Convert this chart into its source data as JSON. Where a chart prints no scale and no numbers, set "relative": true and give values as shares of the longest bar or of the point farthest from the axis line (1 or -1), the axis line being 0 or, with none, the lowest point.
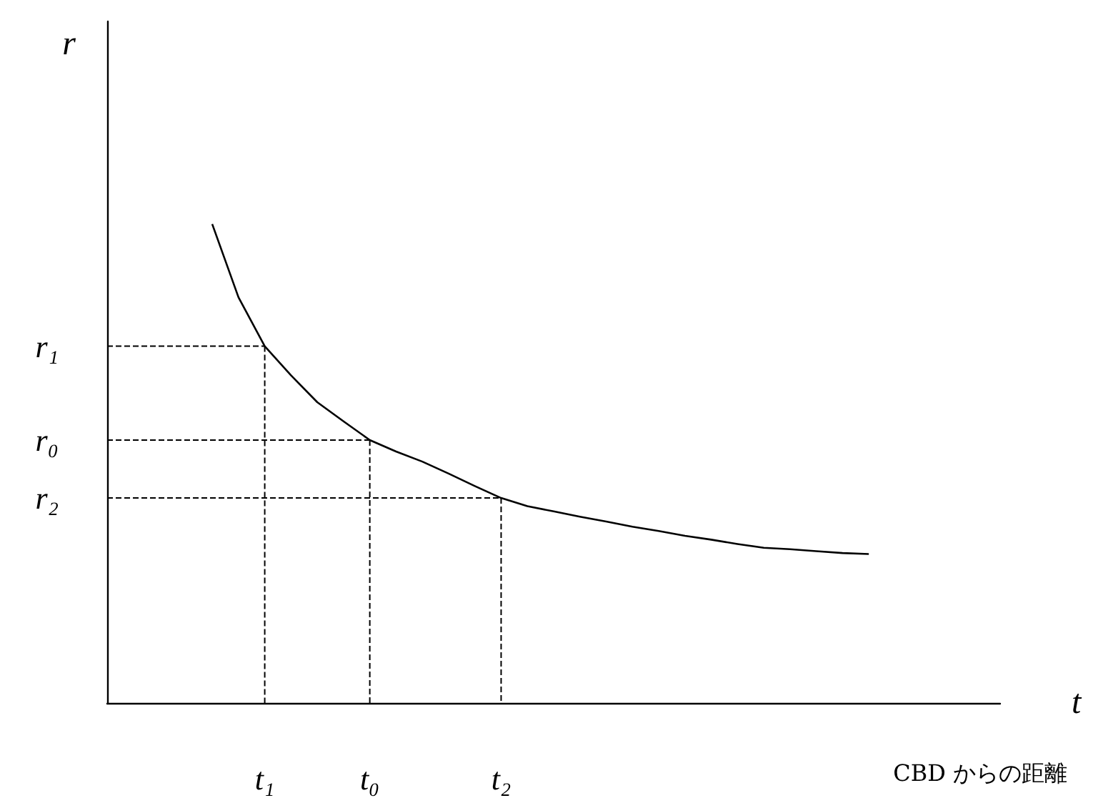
{
  "chart_data": {
    "type": "line",
    "xlabel": "t",
    "ylabel": "r",
    "relative": true,
    "categories": [
      null,
      null,
      null,
      null,
      null,
      null,
      "t₁",
      null,
      null,
      null,
      "t₀",
      null,
      null,
      null,
      null,
      "t₂",
      null,
      null,
      null,
      null,
      null,
      null,
      null,
      null,
      null,
      null,
      null,
      null,
      null,
      null,
      null,
      null,
      null,
      null,
      null
    ],
    "annotations": [
      "CBD からの距離"
    ],
    "grid": false,
    "marker": "none",
    "series": [
      {
        "color": "#000000",
        "line_style": "solid",
        "values": [
          null,
          null,
          null,
          null,
          1,
          0.847,
          0.745,
          0.684,
          0.628,
          0.588,
          0.549,
          0.525,
          0.504,
          0.479,
          0.453,
          0.428,
          0.411,
          0.4,
          0.389,
          0.379,
          0.368,
          0.359,
          0.349,
          0.341,
          0.332,
          0.324,
          0.321,
          0.317,
          0.313,
          0.311,
          null,
          null,
          null,
          null,
          null
        ]
      },
      {
        "name": "r₁",
        "color": "#000000",
        "line_style": "dashed",
        "values": [
          0.745,
          0.745,
          0.745,
          0.745,
          0.745,
          0.745,
          0.745,
          null,
          null,
          null,
          null,
          null,
          null,
          null,
          null,
          null,
          null,
          null,
          null,
          null,
          null,
          null,
          null,
          null,
          null,
          null,
          null,
          null,
          null,
          null,
          null,
          null,
          null,
          null,
          null
        ]
      },
      {
        "color": "#000000",
        "line_style": "dashed",
        "x": [
          "t₁",
          "t₁"
        ],
        "values": [
          0.745,
          0
        ]
      },
      {
        "name": "r₀",
        "color": "#000000",
        "line_style": "dashed",
        "values": [
          0.549,
          0.549,
          0.549,
          0.549,
          0.549,
          0.549,
          0.549,
          0.549,
          0.549,
          0.549,
          0.549,
          null,
          null,
          null,
          null,
          null,
          null,
          null,
          null,
          null,
          null,
          null,
          null,
          null,
          null,
          null,
          null,
          null,
          null,
          null,
          null,
          null,
          null,
          null,
          null
        ]
      },
      {
        "color": "#000000",
        "line_style": "dashed",
        "x": [
          "t₀",
          "t₀"
        ],
        "values": [
          0.549,
          0
        ]
      },
      {
        "name": "r₂",
        "color": "#000000",
        "line_style": "dashed",
        "values": [
          0.428,
          0.428,
          0.428,
          0.428,
          0.428,
          0.428,
          0.428,
          0.428,
          0.428,
          0.428,
          0.428,
          0.428,
          0.428,
          0.428,
          0.428,
          0.428,
          null,
          null,
          null,
          null,
          null,
          null,
          null,
          null,
          null,
          null,
          null,
          null,
          null,
          null,
          null,
          null,
          null,
          null,
          null
        ]
      },
      {
        "color": "#000000",
        "line_style": "dashed",
        "x": [
          "t₂",
          "t₂"
        ],
        "values": [
          0.428,
          0
        ]
      }
    ]
  }
}
